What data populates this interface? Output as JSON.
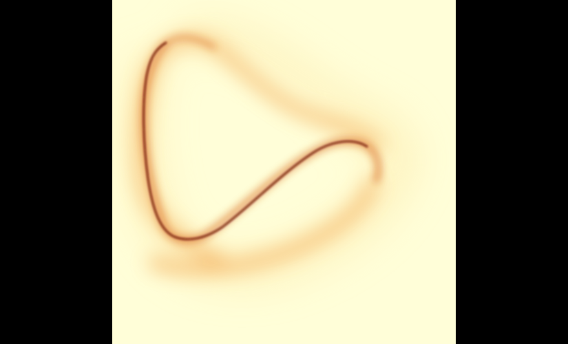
{
  "viewer": {
    "background_color": "#000000"
  },
  "image": {
    "subject": "attractor-density-render",
    "colors": {
      "base": "#fffed8",
      "haze": "#fde8a8",
      "glow": "#f2a24a",
      "trail": "#d96a1c",
      "core": "#6e0f00"
    }
  }
}
